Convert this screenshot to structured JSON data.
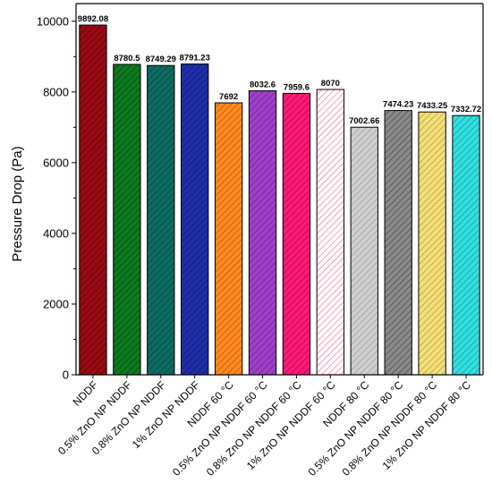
{
  "chart_data": {
    "type": "bar",
    "title": "",
    "xlabel": "",
    "ylabel": "Pressure Drop (Pa)",
    "ylim": [
      0,
      10500
    ],
    "yticks": [
      0,
      2000,
      4000,
      6000,
      8000,
      10000
    ],
    "grid": false,
    "legend": "none",
    "categories": [
      "NDDF",
      "0.5% ZnO NP NDDF",
      "0.8% ZnO NP NDDF",
      "1% ZnO NP NDDF",
      "NDDF 60 °C",
      "0.5% ZnO NP NDDF 60 °C",
      "0.8% ZnO NP NDDF 60 °C",
      "1% ZnO NP NDDF 60 °C",
      "NDDF 80 °C",
      "0.5% ZnO NP NDDF 80 °C",
      "0.8% ZnO NP NDDF 80 °C",
      "1% ZnO NP NDDF 80 °C"
    ],
    "values": [
      9892.08,
      8780.5,
      8749.29,
      8791.23,
      7692,
      8032.6,
      7959.6,
      8070,
      7002.66,
      7474.23,
      7433.25,
      7332.72
    ],
    "value_labels": [
      "9892.08",
      "8780.5",
      "8749.29",
      "8791.23",
      "7692",
      "8032.6",
      "7959.6",
      "8070",
      "7002.66",
      "7474.23",
      "7433.25",
      "7332.72"
    ],
    "colors": [
      "#9b0a12",
      "#0f7a20",
      "#0f6b63",
      "#1f2fa8",
      "#ff8a1f",
      "#a040c8",
      "#ff1a78",
      "#ffffff",
      "#cfcfcf",
      "#8a8a8a",
      "#f4e07a",
      "#33e0e0"
    ],
    "hatch_colors": [
      "#4a0005",
      "#003a08",
      "#003a36",
      "#0a1460",
      "#a04a00",
      "#5a1a78",
      "#900040",
      "#ff5a9a",
      "#909090",
      "#3a3a3a",
      "#a08e2a",
      "#0a8a8a"
    ]
  }
}
